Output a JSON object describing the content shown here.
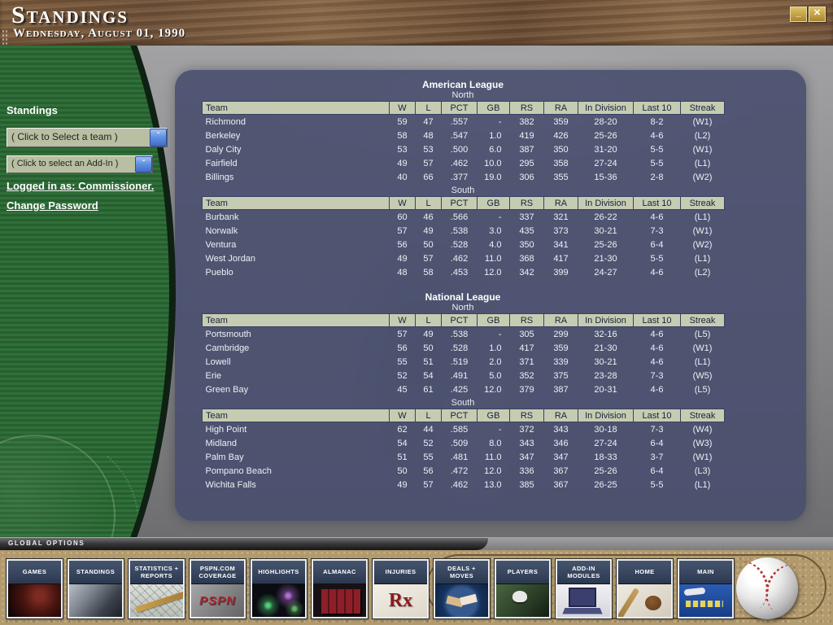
{
  "window": {
    "title": "Standings",
    "date": "Wednesday, August 01, 1990",
    "minimize_glyph": "_",
    "close_glyph": "✕"
  },
  "sidebar": {
    "heading": "Standings",
    "team_select_value": "( Click to Select a team )",
    "addin_select_value": "( Click to select an Add-In )",
    "dropdown_arrow_glyph": "ˇ",
    "logged_in_text": "Logged in as: Commissioner.",
    "change_password_text": "Change Password"
  },
  "standings": {
    "columns": [
      "Team",
      "W",
      "L",
      "PCT",
      "GB",
      "RS",
      "RA",
      "In Division",
      "Last 10",
      "Streak"
    ],
    "leagues": [
      {
        "name": "American League",
        "divisions": [
          {
            "name": "North",
            "rows": [
              [
                "Richmond",
                "59",
                "47",
                ".557",
                "-",
                "382",
                "359",
                "28-20",
                "8-2",
                "(W1)"
              ],
              [
                "Berkeley",
                "58",
                "48",
                ".547",
                "1.0",
                "419",
                "426",
                "25-26",
                "4-6",
                "(L2)"
              ],
              [
                "Daly City",
                "53",
                "53",
                ".500",
                "6.0",
                "387",
                "350",
                "31-20",
                "5-5",
                "(W1)"
              ],
              [
                "Fairfield",
                "49",
                "57",
                ".462",
                "10.0",
                "295",
                "358",
                "27-24",
                "5-5",
                "(L1)"
              ],
              [
                "Billings",
                "40",
                "66",
                ".377",
                "19.0",
                "306",
                "355",
                "15-36",
                "2-8",
                "(W2)"
              ]
            ]
          },
          {
            "name": "South",
            "rows": [
              [
                "Burbank",
                "60",
                "46",
                ".566",
                "-",
                "337",
                "321",
                "26-22",
                "4-6",
                "(L1)"
              ],
              [
                "Norwalk",
                "57",
                "49",
                ".538",
                "3.0",
                "435",
                "373",
                "30-21",
                "7-3",
                "(W1)"
              ],
              [
                "Ventura",
                "56",
                "50",
                ".528",
                "4.0",
                "350",
                "341",
                "25-26",
                "6-4",
                "(W2)"
              ],
              [
                "West Jordan",
                "49",
                "57",
                ".462",
                "11.0",
                "368",
                "417",
                "21-30",
                "5-5",
                "(L1)"
              ],
              [
                "Pueblo",
                "48",
                "58",
                ".453",
                "12.0",
                "342",
                "399",
                "24-27",
                "4-6",
                "(L2)"
              ]
            ]
          }
        ]
      },
      {
        "name": "National League",
        "divisions": [
          {
            "name": "North",
            "rows": [
              [
                "Portsmouth",
                "57",
                "49",
                ".538",
                "-",
                "305",
                "299",
                "32-16",
                "4-6",
                "(L5)"
              ],
              [
                "Cambridge",
                "56",
                "50",
                ".528",
                "1.0",
                "417",
                "359",
                "21-30",
                "4-6",
                "(W1)"
              ],
              [
                "Lowell",
                "55",
                "51",
                ".519",
                "2.0",
                "371",
                "339",
                "30-21",
                "4-6",
                "(L1)"
              ],
              [
                "Erie",
                "52",
                "54",
                ".491",
                "5.0",
                "352",
                "375",
                "23-28",
                "7-3",
                "(W5)"
              ],
              [
                "Green Bay",
                "45",
                "61",
                ".425",
                "12.0",
                "379",
                "387",
                "20-31",
                "4-6",
                "(L5)"
              ]
            ]
          },
          {
            "name": "South",
            "rows": [
              [
                "High Point",
                "62",
                "44",
                ".585",
                "-",
                "372",
                "343",
                "30-18",
                "7-3",
                "(W4)"
              ],
              [
                "Midland",
                "54",
                "52",
                ".509",
                "8.0",
                "343",
                "346",
                "27-24",
                "6-4",
                "(W3)"
              ],
              [
                "Palm Bay",
                "51",
                "55",
                ".481",
                "11.0",
                "347",
                "347",
                "18-33",
                "3-7",
                "(W1)"
              ],
              [
                "Pompano Beach",
                "50",
                "56",
                ".472",
                "12.0",
                "336",
                "367",
                "25-26",
                "6-4",
                "(L3)"
              ],
              [
                "Wichita Falls",
                "49",
                "57",
                ".462",
                "13.0",
                "385",
                "367",
                "26-25",
                "5-5",
                "(L1)"
              ]
            ]
          }
        ]
      }
    ]
  },
  "footer": {
    "options_label": "GLOBAL OPTIONS",
    "buttons": [
      {
        "label": "Games",
        "icon": "batter-photo-icon"
      },
      {
        "label": "Standings",
        "icon": "player-photo-icon"
      },
      {
        "label": "Statistics + Reports",
        "icon": "blueprint-pencil-icon"
      },
      {
        "label": "PSPN.com Coverage",
        "icon": "pspn-logo-icon",
        "icon_text": "PSPN"
      },
      {
        "label": "Highlights",
        "icon": "fireworks-icon"
      },
      {
        "label": "Almanac",
        "icon": "books-icon"
      },
      {
        "label": "Injuries",
        "icon": "rx-icon",
        "icon_text": "Rx"
      },
      {
        "label": "Deals + Moves",
        "icon": "handshake-icon"
      },
      {
        "label": "Players",
        "icon": "player-helmet-icon"
      },
      {
        "label": "Add-In Modules",
        "icon": "laptop-icon"
      },
      {
        "label": "Home",
        "icon": "bat-glove-icon"
      },
      {
        "label": "Main",
        "icon": "logo-card-icon"
      }
    ]
  }
}
